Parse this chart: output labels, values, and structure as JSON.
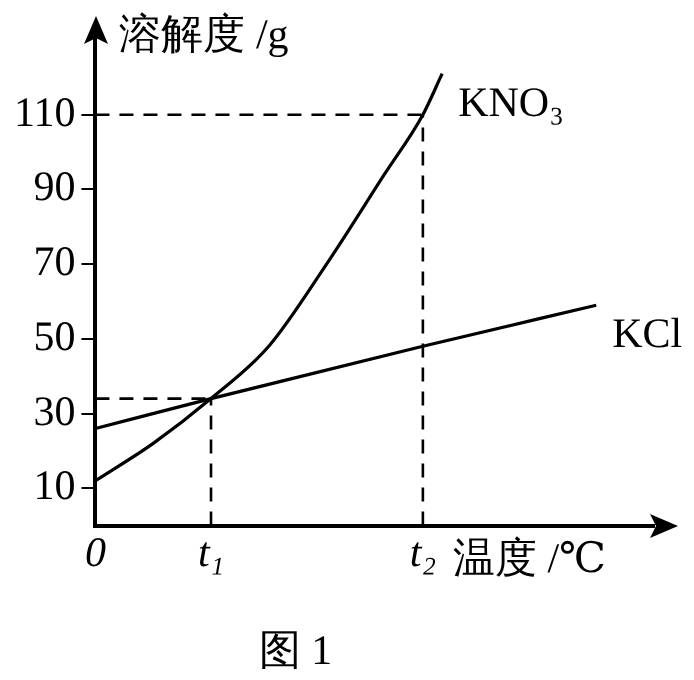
{
  "chart_data": {
    "type": "line",
    "ylabel": "溶解度 /g",
    "xlabel": "温度 /℃",
    "annotations": [
      "图 1"
    ],
    "categories": [
      "0",
      null,
      null,
      null,
      null,
      null,
      "t₁",
      null,
      null,
      null,
      null,
      null,
      null,
      null,
      null,
      null,
      null,
      "t₂",
      null,
      null,
      null,
      null,
      null,
      null,
      null,
      null,
      null,
      null,
      null,
      null
    ],
    "ylim": [
      0,
      130
    ],
    "yticks": [
      10,
      30,
      50,
      70,
      90,
      110
    ],
    "grid": false,
    "legend": false,
    "marker": "none",
    "series": [
      {
        "name": "KNO₃",
        "color": "#000000",
        "values": [
          12,
          null,
          null,
          22,
          null,
          null,
          34,
          null,
          null,
          48,
          null,
          null,
          70,
          null,
          null,
          94,
          null,
          110,
          121,
          null,
          null,
          null,
          null,
          null,
          null,
          null,
          null,
          null,
          null,
          null
        ]
      },
      {
        "name": "KCl",
        "color": "#000000",
        "values": [
          26,
          null,
          null,
          null,
          null,
          null,
          34,
          null,
          null,
          null,
          null,
          null,
          null,
          null,
          null,
          null,
          null,
          48,
          null,
          null,
          null,
          null,
          null,
          null,
          null,
          null,
          59,
          null,
          null,
          null
        ]
      }
    ],
    "ref_lines": [
      {
        "axis": "y",
        "value": 110,
        "color": "#000000",
        "line_style": "dashed"
      },
      {
        "axis": "x",
        "value": "t₂",
        "color": "#000000",
        "line_style": "dashed"
      },
      {
        "axis": "y",
        "value": 34,
        "color": "#000000",
        "line_style": "dashed"
      },
      {
        "axis": "x",
        "value": "t₁",
        "color": "#000000",
        "line_style": "dashed"
      }
    ]
  }
}
